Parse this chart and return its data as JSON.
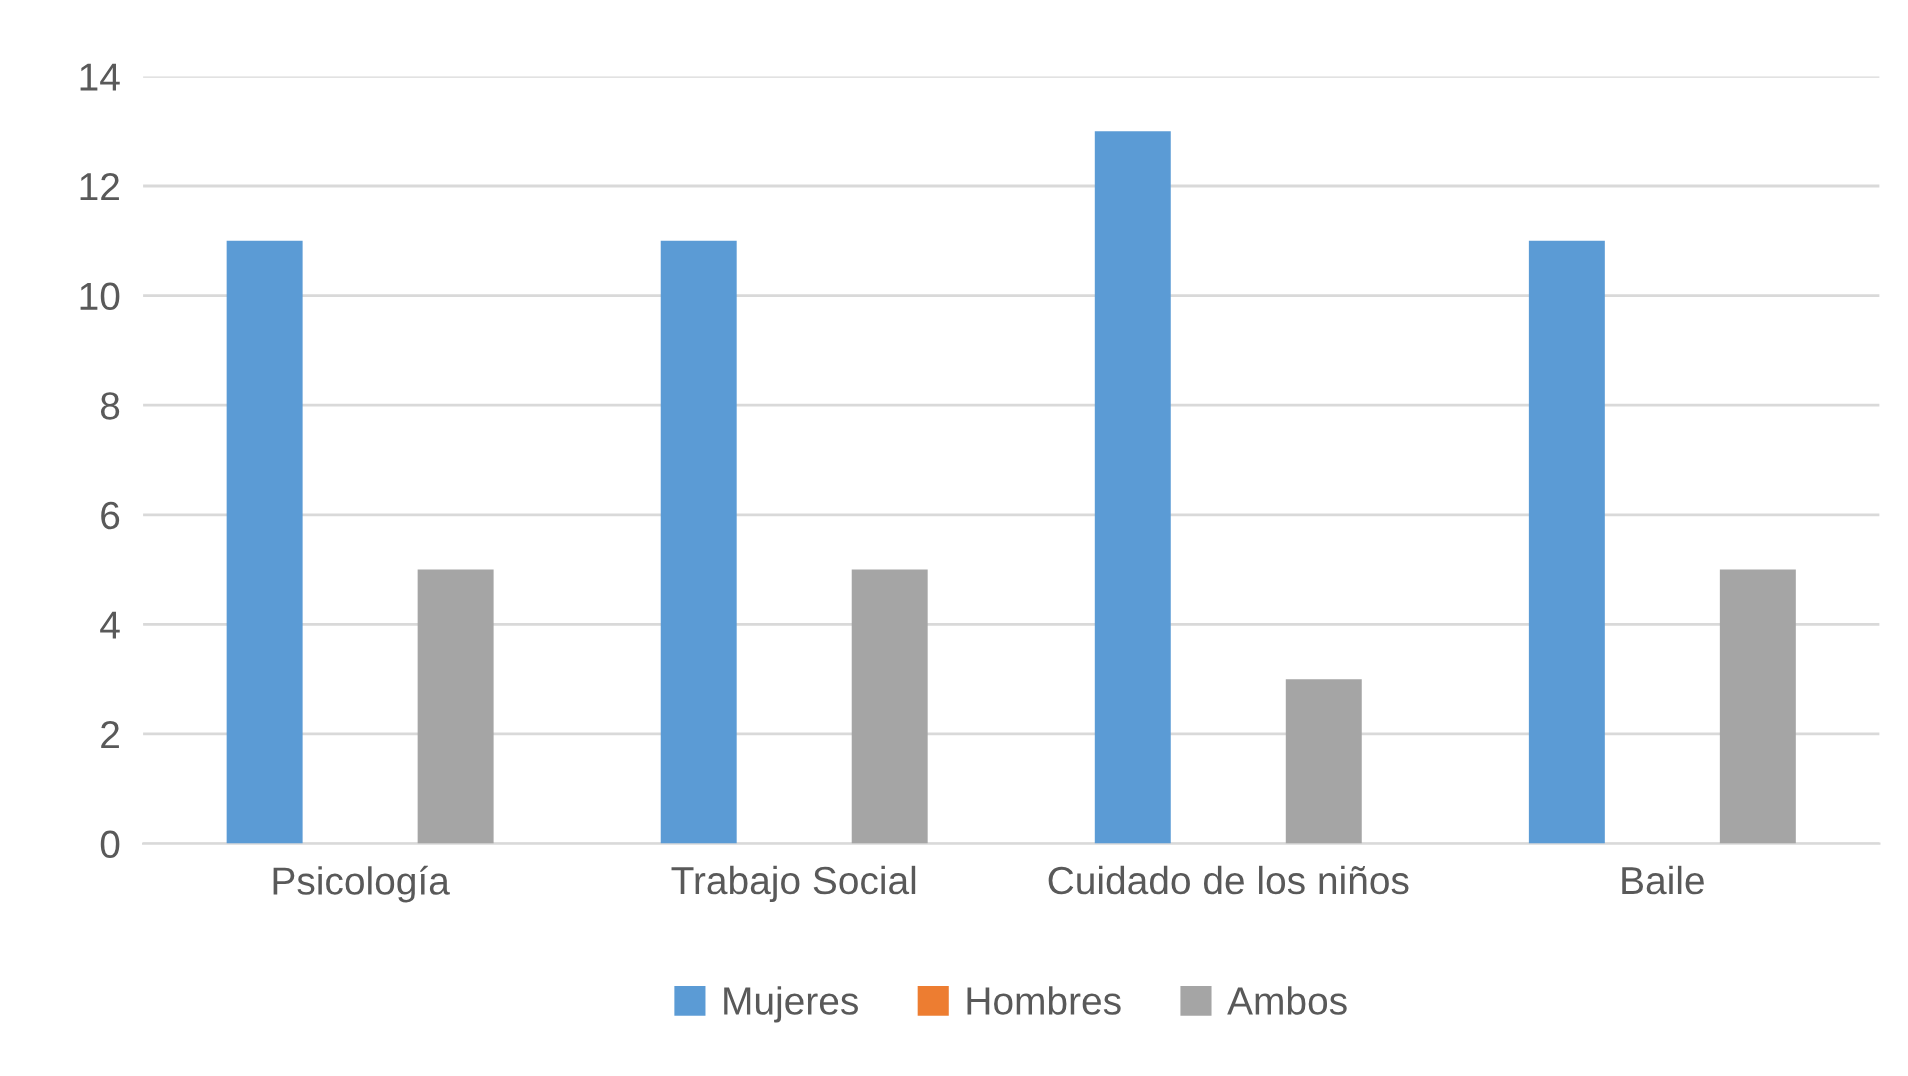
{
  "chart_data": {
    "type": "bar",
    "categories": [
      "Psicología",
      "Trabajo Social",
      "Cuidado de los niños",
      "Baile"
    ],
    "series": [
      {
        "name": "Mujeres",
        "color": "#5b9bd5",
        "values": [
          11,
          11,
          13,
          11
        ]
      },
      {
        "name": "Hombres",
        "color": "#ed7d31",
        "values": [
          0,
          0,
          0,
          0
        ]
      },
      {
        "name": "Ambos",
        "color": "#a5a5a5",
        "values": [
          5,
          5,
          3,
          5
        ]
      }
    ],
    "ylim": [
      0,
      14
    ],
    "yticks": [
      0,
      2,
      4,
      6,
      8,
      10,
      12,
      14
    ],
    "grid": "y",
    "legend": "bottom"
  }
}
